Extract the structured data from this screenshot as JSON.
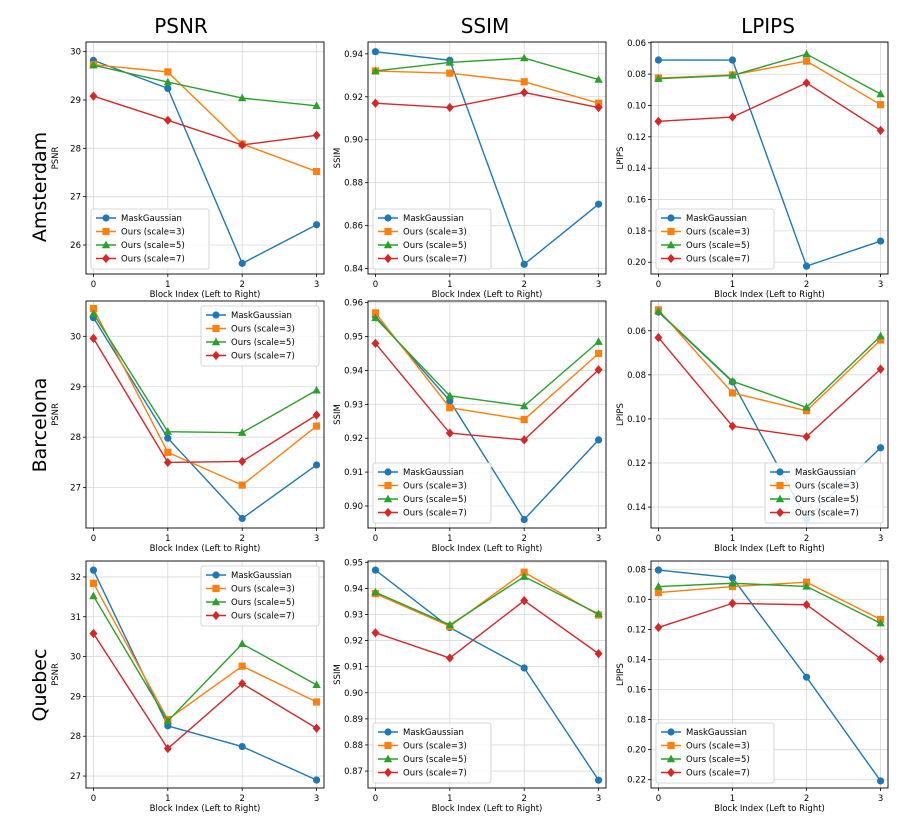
{
  "column_titles": [
    "PSNR",
    "SSIM",
    "LPIPS"
  ],
  "row_titles": [
    "Amsterdam",
    "Barcelona",
    "Quebec"
  ],
  "series_styles": [
    {
      "name": "MaskGaussian",
      "color": "#1f77b4",
      "marker": "circle"
    },
    {
      "name": "Ours (scale=3)",
      "color": "#ff7f0e",
      "marker": "square"
    },
    {
      "name": "Ours (scale=5)",
      "color": "#2ca02c",
      "marker": "triangle"
    },
    {
      "name": "Ours (scale=7)",
      "color": "#d62728",
      "marker": "diamond"
    }
  ],
  "chart_data": [
    {
      "type": "line",
      "title": "PSNR",
      "row": "Amsterdam",
      "xlabel": "Block Index (Left to Right)",
      "ylabel": "PSNR",
      "x": [
        0,
        1,
        2,
        3
      ],
      "xticks": [
        "0",
        "1",
        "2",
        "3"
      ],
      "ylim": [
        25.4,
        30.2
      ],
      "yticks": [
        26,
        27,
        28,
        29,
        30
      ],
      "ytick_labels": [
        "26",
        "27",
        "28",
        "29",
        "30"
      ],
      "invert_y": false,
      "grid": true,
      "legend": "lower-left",
      "series": [
        {
          "name": "MaskGaussian",
          "values": [
            29.82,
            29.24,
            25.62,
            26.42
          ]
        },
        {
          "name": "Ours (scale=3)",
          "values": [
            29.73,
            29.58,
            28.09,
            27.52
          ]
        },
        {
          "name": "Ours (scale=5)",
          "values": [
            29.72,
            29.37,
            29.04,
            28.88
          ]
        },
        {
          "name": "Ours (scale=7)",
          "values": [
            29.08,
            28.58,
            28.07,
            28.27
          ]
        }
      ]
    },
    {
      "type": "line",
      "title": "SSIM",
      "row": "Amsterdam",
      "xlabel": "Block Index (Left to Right)",
      "ylabel": "SSIM",
      "x": [
        0,
        1,
        2,
        3
      ],
      "xticks": [
        "0",
        "1",
        "2",
        "3"
      ],
      "ylim": [
        0.8375,
        0.9455
      ],
      "yticks": [
        0.84,
        0.86,
        0.88,
        0.9,
        0.92,
        0.94
      ],
      "ytick_labels": [
        "0.84",
        "0.86",
        "0.88",
        "0.90",
        "0.92",
        "0.94"
      ],
      "invert_y": false,
      "grid": true,
      "legend": "lower-left",
      "series": [
        {
          "name": "MaskGaussian",
          "values": [
            0.941,
            0.937,
            0.842,
            0.87
          ]
        },
        {
          "name": "Ours (scale=3)",
          "values": [
            0.932,
            0.931,
            0.927,
            0.917
          ]
        },
        {
          "name": "Ours (scale=5)",
          "values": [
            0.932,
            0.936,
            0.938,
            0.928
          ]
        },
        {
          "name": "Ours (scale=7)",
          "values": [
            0.917,
            0.915,
            0.922,
            0.915
          ]
        }
      ]
    },
    {
      "type": "line",
      "title": "LPIPS",
      "row": "Amsterdam",
      "xlabel": "Block Index (Left to Right)",
      "ylabel": "LPIPS",
      "x": [
        0,
        1,
        2,
        3
      ],
      "xticks": [
        "0",
        "1",
        "2",
        "3"
      ],
      "ylim": [
        0.0595,
        0.2075
      ],
      "yticks": [
        0.06,
        0.08,
        0.1,
        0.12,
        0.14,
        0.16,
        0.18,
        0.2
      ],
      "ytick_labels": [
        "0.06",
        "0.08",
        "0.10",
        "0.12",
        "0.14",
        "0.16",
        "0.18",
        "0.20"
      ],
      "invert_y": true,
      "grid": true,
      "legend": "lower-left",
      "series": [
        {
          "name": "MaskGaussian",
          "values": [
            0.071,
            0.071,
            0.2025,
            0.1865
          ]
        },
        {
          "name": "Ours (scale=3)",
          "values": [
            0.0825,
            0.0805,
            0.0717,
            0.0995
          ]
        },
        {
          "name": "Ours (scale=5)",
          "values": [
            0.0829,
            0.0808,
            0.0672,
            0.0927
          ]
        },
        {
          "name": "Ours (scale=7)",
          "values": [
            0.1101,
            0.1074,
            0.0856,
            0.1159
          ]
        }
      ]
    },
    {
      "type": "line",
      "title": "PSNR",
      "row": "Barcelona",
      "xlabel": "Block Index (Left to Right)",
      "ylabel": "PSNR",
      "x": [
        0,
        1,
        2,
        3
      ],
      "xticks": [
        "0",
        "1",
        "2",
        "3"
      ],
      "ylim": [
        26.2,
        30.7
      ],
      "yticks": [
        27,
        28,
        29,
        30
      ],
      "ytick_labels": [
        "27",
        "28",
        "29",
        "30"
      ],
      "invert_y": false,
      "grid": true,
      "legend": "upper-right",
      "series": [
        {
          "name": "MaskGaussian",
          "values": [
            30.37,
            27.98,
            26.39,
            27.45
          ]
        },
        {
          "name": "Ours (scale=3)",
          "values": [
            30.55,
            27.7,
            27.05,
            28.22
          ]
        },
        {
          "name": "Ours (scale=5)",
          "values": [
            30.45,
            28.11,
            28.09,
            28.93
          ]
        },
        {
          "name": "Ours (scale=7)",
          "values": [
            29.96,
            27.5,
            27.52,
            28.44
          ]
        }
      ]
    },
    {
      "type": "line",
      "title": "SSIM",
      "row": "Barcelona",
      "xlabel": "Block Index (Left to Right)",
      "ylabel": "SSIM",
      "x": [
        0,
        1,
        2,
        3
      ],
      "xticks": [
        "0",
        "1",
        "2",
        "3"
      ],
      "ylim": [
        0.8935,
        0.9605
      ],
      "yticks": [
        0.9,
        0.91,
        0.92,
        0.93,
        0.94,
        0.95,
        0.96
      ],
      "ytick_labels": [
        "0.90",
        "0.91",
        "0.92",
        "0.93",
        "0.94",
        "0.95",
        "0.96"
      ],
      "invert_y": false,
      "grid": true,
      "legend": "lower-left",
      "series": [
        {
          "name": "MaskGaussian",
          "values": [
            0.956,
            0.931,
            0.896,
            0.9195
          ]
        },
        {
          "name": "Ours (scale=3)",
          "values": [
            0.957,
            0.929,
            0.9255,
            0.945
          ]
        },
        {
          "name": "Ours (scale=5)",
          "values": [
            0.9555,
            0.9325,
            0.9295,
            0.9485
          ]
        },
        {
          "name": "Ours (scale=7)",
          "values": [
            0.948,
            0.9215,
            0.9195,
            0.9402
          ]
        }
      ]
    },
    {
      "type": "line",
      "title": "LPIPS",
      "row": "Barcelona",
      "xlabel": "Block Index (Left to Right)",
      "ylabel": "LPIPS",
      "x": [
        0,
        1,
        2,
        3
      ],
      "xticks": [
        "0",
        "1",
        "2",
        "3"
      ],
      "ylim": [
        0.0465,
        0.1495
      ],
      "yticks": [
        0.06,
        0.08,
        0.1,
        0.12,
        0.14
      ],
      "ytick_labels": [
        "0.06",
        "0.08",
        "0.10",
        "0.12",
        "0.14"
      ],
      "invert_y": true,
      "grid": true,
      "legend": "lower-right",
      "series": [
        {
          "name": "MaskGaussian",
          "values": [
            0.0515,
            0.0832,
            0.1453,
            0.1131
          ]
        },
        {
          "name": "Ours (scale=3)",
          "values": [
            0.0505,
            0.0882,
            0.0963,
            0.0642
          ]
        },
        {
          "name": "Ours (scale=5)",
          "values": [
            0.0512,
            0.0829,
            0.0948,
            0.0624
          ]
        },
        {
          "name": "Ours (scale=7)",
          "values": [
            0.0631,
            0.1033,
            0.1081,
            0.0774
          ]
        }
      ]
    },
    {
      "type": "line",
      "title": "PSNR",
      "row": "Quebec",
      "xlabel": "Block Index (Left to Right)",
      "ylabel": "PSNR",
      "x": [
        0,
        1,
        2,
        3
      ],
      "xticks": [
        "0",
        "1",
        "2",
        "3"
      ],
      "ylim": [
        26.7,
        32.4
      ],
      "yticks": [
        27,
        28,
        29,
        30,
        31,
        32
      ],
      "ytick_labels": [
        "27",
        "28",
        "29",
        "30",
        "31",
        "32"
      ],
      "invert_y": false,
      "grid": true,
      "legend": "upper-right",
      "series": [
        {
          "name": "MaskGaussian",
          "values": [
            32.17,
            28.26,
            27.74,
            26.9
          ]
        },
        {
          "name": "Ours (scale=3)",
          "values": [
            31.84,
            28.42,
            29.76,
            28.86
          ]
        },
        {
          "name": "Ours (scale=5)",
          "values": [
            31.52,
            28.38,
            30.32,
            29.29
          ]
        },
        {
          "name": "Ours (scale=7)",
          "values": [
            30.58,
            27.69,
            29.32,
            28.2
          ]
        }
      ]
    },
    {
      "type": "line",
      "title": "SSIM",
      "row": "Quebec",
      "xlabel": "Block Index (Left to Right)",
      "ylabel": "SSIM",
      "x": [
        0,
        1,
        2,
        3
      ],
      "xticks": [
        "0",
        "1",
        "2",
        "3"
      ],
      "ylim": [
        0.8635,
        0.9505
      ],
      "yticks": [
        0.87,
        0.88,
        0.89,
        0.9,
        0.91,
        0.92,
        0.93,
        0.94,
        0.95
      ],
      "ytick_labels": [
        "0.87",
        "0.88",
        "0.89",
        "0.90",
        "0.91",
        "0.92",
        "0.93",
        "0.94",
        "0.95"
      ],
      "invert_y": false,
      "grid": true,
      "legend": "lower-left",
      "series": [
        {
          "name": "MaskGaussian",
          "values": [
            0.947,
            0.925,
            0.9095,
            0.8665
          ]
        },
        {
          "name": "Ours (scale=3)",
          "values": [
            0.938,
            0.9255,
            0.9462,
            0.9298
          ]
        },
        {
          "name": "Ours (scale=5)",
          "values": [
            0.9385,
            0.926,
            0.9445,
            0.9302
          ]
        },
        {
          "name": "Ours (scale=7)",
          "values": [
            0.923,
            0.9133,
            0.9353,
            0.915
          ]
        }
      ]
    },
    {
      "type": "line",
      "title": "LPIPS",
      "row": "Quebec",
      "xlabel": "Block Index (Left to Right)",
      "ylabel": "LPIPS",
      "x": [
        0,
        1,
        2,
        3
      ],
      "xticks": [
        "0",
        "1",
        "2",
        "3"
      ],
      "ylim": [
        0.0745,
        0.2255
      ],
      "yticks": [
        0.08,
        0.1,
        0.12,
        0.14,
        0.16,
        0.18,
        0.2,
        0.22
      ],
      "ytick_labels": [
        "0.08",
        "0.10",
        "0.12",
        "0.14",
        "0.16",
        "0.18",
        "0.20",
        "0.22"
      ],
      "invert_y": true,
      "grid": true,
      "legend": "lower-left",
      "series": [
        {
          "name": "MaskGaussian",
          "values": [
            0.0805,
            0.0857,
            0.1518,
            0.2208
          ]
        },
        {
          "name": "Ours (scale=3)",
          "values": [
            0.0955,
            0.0915,
            0.0886,
            0.1134
          ]
        },
        {
          "name": "Ours (scale=5)",
          "values": [
            0.0915,
            0.0893,
            0.0914,
            0.1159
          ]
        },
        {
          "name": "Ours (scale=7)",
          "values": [
            0.1187,
            0.1027,
            0.1036,
            0.1395
          ]
        }
      ]
    }
  ]
}
